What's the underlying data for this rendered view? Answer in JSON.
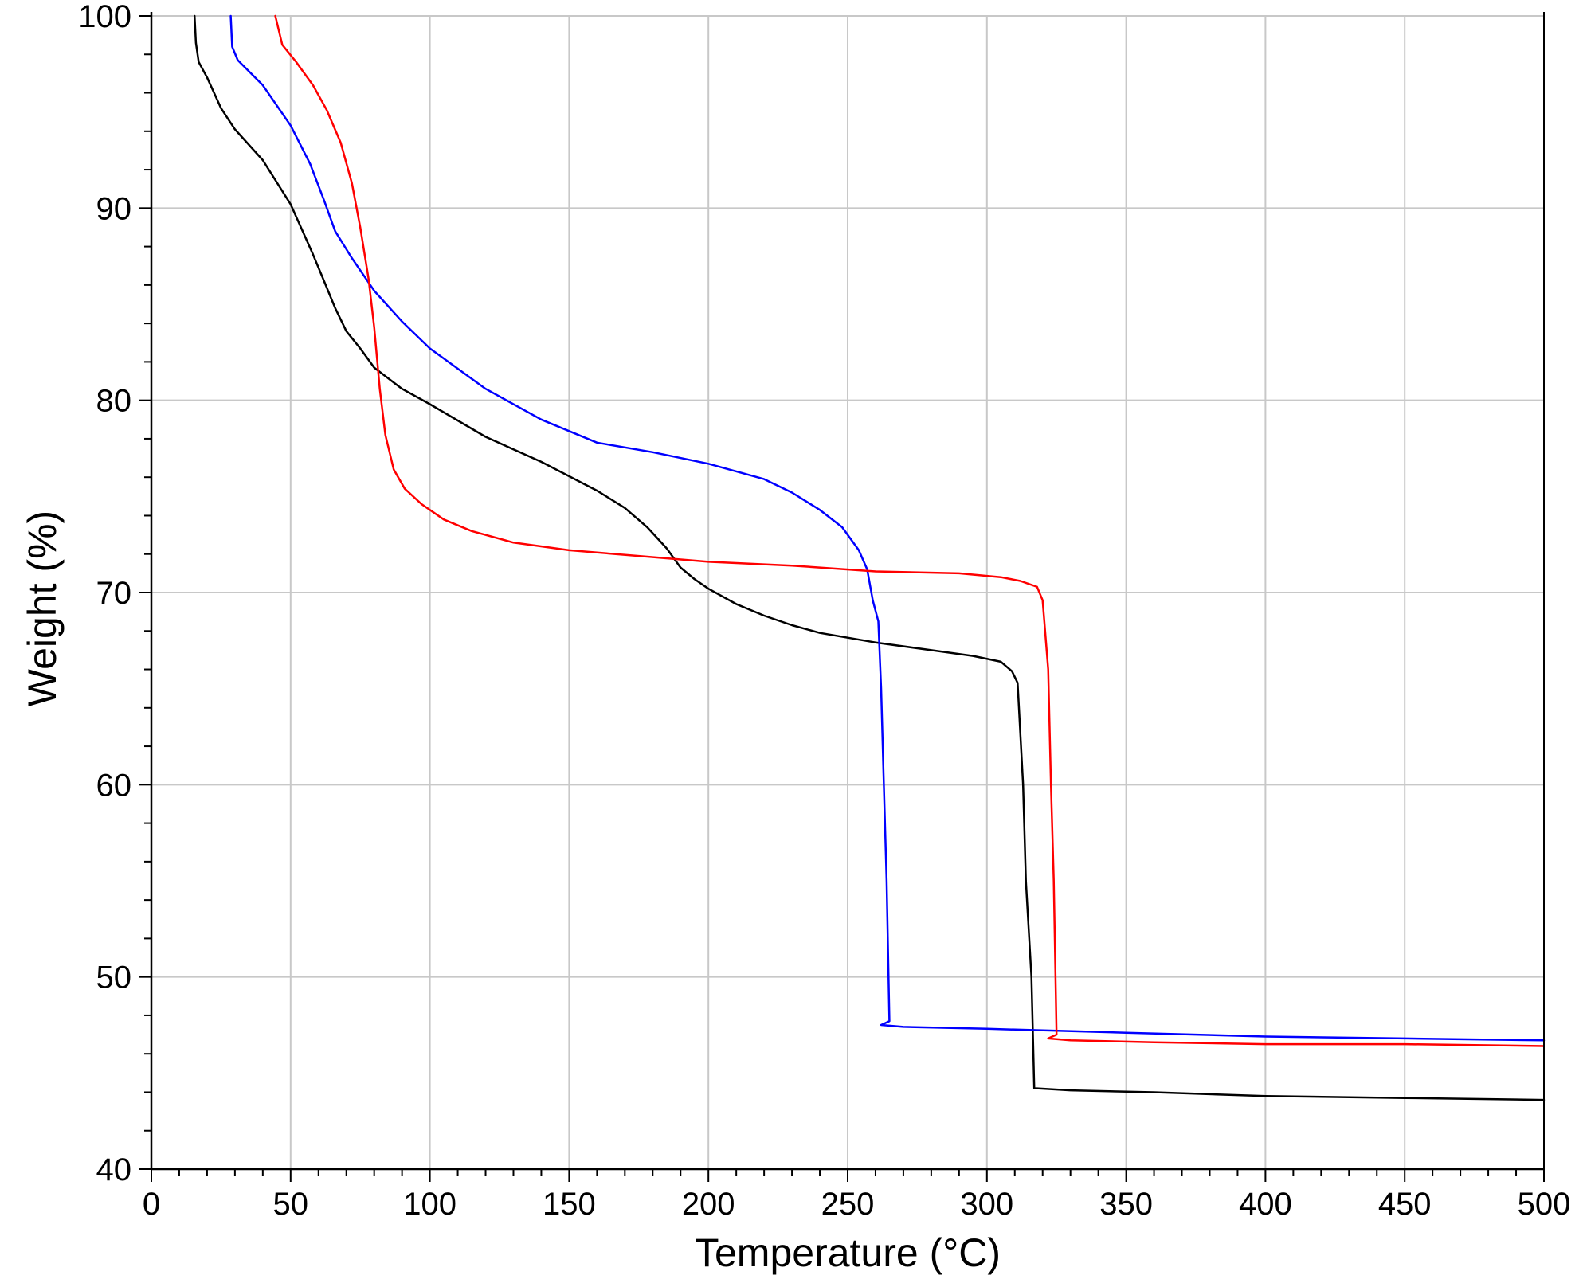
{
  "chart_data": {
    "type": "line",
    "title": "",
    "xlabel": "Temperature (°C)",
    "ylabel": "Weight (%)",
    "xlim": [
      0,
      500
    ],
    "ylim": [
      40,
      100
    ],
    "x_ticks": [
      0,
      50,
      100,
      150,
      200,
      250,
      300,
      350,
      400,
      450,
      500
    ],
    "y_ticks": [
      40,
      50,
      60,
      70,
      80,
      90,
      100
    ],
    "grid": true,
    "legend": "none",
    "series": [
      {
        "color": "#000000",
        "points": [
          [
            15.5,
            100
          ],
          [
            16,
            98.6
          ],
          [
            17,
            97.6
          ],
          [
            20,
            96.8
          ],
          [
            25,
            95.2
          ],
          [
            30,
            94.1
          ],
          [
            40,
            92.5
          ],
          [
            50,
            90.2
          ],
          [
            58,
            87.6
          ],
          [
            62,
            86.2
          ],
          [
            66,
            84.8
          ],
          [
            70,
            83.6
          ],
          [
            75,
            82.7
          ],
          [
            80,
            81.7
          ],
          [
            90,
            80.6
          ],
          [
            100,
            79.8
          ],
          [
            120,
            78.1
          ],
          [
            140,
            76.8
          ],
          [
            160,
            75.3
          ],
          [
            170,
            74.4
          ],
          [
            178,
            73.4
          ],
          [
            185,
            72.3
          ],
          [
            190,
            71.3
          ],
          [
            195,
            70.7
          ],
          [
            200,
            70.2
          ],
          [
            210,
            69.4
          ],
          [
            220,
            68.8
          ],
          [
            230,
            68.3
          ],
          [
            240,
            67.9
          ],
          [
            260,
            67.4
          ],
          [
            280,
            67.0
          ],
          [
            295,
            66.7
          ],
          [
            305,
            66.4
          ],
          [
            309,
            65.9
          ],
          [
            311,
            65.3
          ],
          [
            313,
            60
          ],
          [
            314,
            55
          ],
          [
            316,
            50
          ],
          [
            317,
            44.2
          ],
          [
            318,
            44.2
          ],
          [
            330,
            44.1
          ],
          [
            360,
            44.0
          ],
          [
            400,
            43.8
          ],
          [
            450,
            43.7
          ],
          [
            500,
            43.6
          ]
        ]
      },
      {
        "color": "#0000ff",
        "points": [
          [
            28.5,
            100
          ],
          [
            29,
            98.4
          ],
          [
            31,
            97.7
          ],
          [
            40,
            96.4
          ],
          [
            50,
            94.3
          ],
          [
            57,
            92.3
          ],
          [
            62,
            90.4
          ],
          [
            66,
            88.8
          ],
          [
            72,
            87.4
          ],
          [
            80,
            85.7
          ],
          [
            90,
            84.1
          ],
          [
            100,
            82.7
          ],
          [
            120,
            80.6
          ],
          [
            140,
            79.0
          ],
          [
            160,
            77.8
          ],
          [
            180,
            77.3
          ],
          [
            200,
            76.7
          ],
          [
            220,
            75.9
          ],
          [
            230,
            75.2
          ],
          [
            240,
            74.3
          ],
          [
            248,
            73.4
          ],
          [
            254,
            72.2
          ],
          [
            257,
            71.2
          ],
          [
            259,
            69.6
          ],
          [
            261,
            68.5
          ],
          [
            262,
            65
          ],
          [
            263,
            60
          ],
          [
            264,
            55
          ],
          [
            265,
            47.7
          ],
          [
            262,
            47.5
          ],
          [
            270,
            47.4
          ],
          [
            300,
            47.3
          ],
          [
            350,
            47.1
          ],
          [
            400,
            46.9
          ],
          [
            450,
            46.8
          ],
          [
            500,
            46.7
          ]
        ]
      },
      {
        "color": "#ff0000",
        "points": [
          [
            44.5,
            100
          ],
          [
            47,
            98.5
          ],
          [
            52,
            97.6
          ],
          [
            58,
            96.4
          ],
          [
            63,
            95.1
          ],
          [
            68,
            93.4
          ],
          [
            72,
            91.3
          ],
          [
            75,
            89
          ],
          [
            78,
            86.3
          ],
          [
            80,
            83.8
          ],
          [
            82,
            80.6
          ],
          [
            84,
            78.2
          ],
          [
            87,
            76.4
          ],
          [
            91,
            75.4
          ],
          [
            97,
            74.6
          ],
          [
            105,
            73.8
          ],
          [
            115,
            73.2
          ],
          [
            130,
            72.6
          ],
          [
            150,
            72.2
          ],
          [
            175,
            71.9
          ],
          [
            200,
            71.6
          ],
          [
            230,
            71.4
          ],
          [
            260,
            71.1
          ],
          [
            290,
            71.0
          ],
          [
            305,
            70.8
          ],
          [
            312,
            70.6
          ],
          [
            318,
            70.3
          ],
          [
            320,
            69.6
          ],
          [
            322,
            66
          ],
          [
            323,
            60
          ],
          [
            324,
            55
          ],
          [
            325,
            47
          ],
          [
            322,
            46.8
          ],
          [
            330,
            46.7
          ],
          [
            360,
            46.6
          ],
          [
            400,
            46.5
          ],
          [
            450,
            46.5
          ],
          [
            500,
            46.4
          ]
        ]
      }
    ]
  }
}
